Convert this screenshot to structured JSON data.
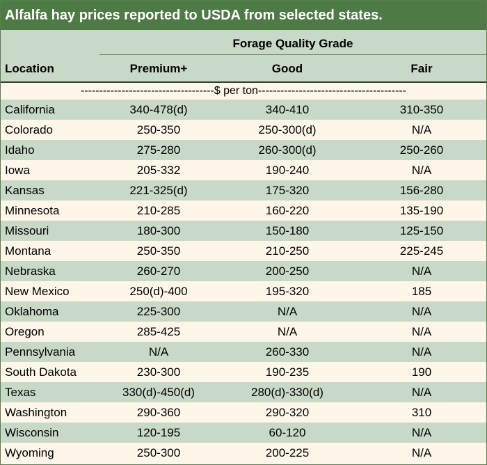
{
  "title": "Alfalfa hay prices reported to USDA from selected states.",
  "header": {
    "group_label": "Forage Quality Grade",
    "location_label": "Location",
    "columns": [
      "Premium+",
      "Good",
      "Fair"
    ]
  },
  "units_label": "$ per ton",
  "rows": [
    {
      "location": "California",
      "premium": "340-478(d)",
      "good": "340-410",
      "fair": "310-350"
    },
    {
      "location": "Colorado",
      "premium": "250-350",
      "good": "250-300(d)",
      "fair": "N/A"
    },
    {
      "location": "Idaho",
      "premium": "275-280",
      "good": "260-300(d)",
      "fair": "250-260"
    },
    {
      "location": "Iowa",
      "premium": "205-332",
      "good": "190-240",
      "fair": "N/A"
    },
    {
      "location": "Kansas",
      "premium": "221-325(d)",
      "good": "175-320",
      "fair": "156-280"
    },
    {
      "location": "Minnesota",
      "premium": "210-285",
      "good": "160-220",
      "fair": "135-190"
    },
    {
      "location": "Missouri",
      "premium": "180-300",
      "good": "150-180",
      "fair": "125-150"
    },
    {
      "location": "Montana",
      "premium": "250-350",
      "good": "210-250",
      "fair": "225-245"
    },
    {
      "location": "Nebraska",
      "premium": "260-270",
      "good": "200-250",
      "fair": "N/A"
    },
    {
      "location": "New Mexico",
      "premium": "250(d)-400",
      "good": "195-320",
      "fair": "185"
    },
    {
      "location": "Oklahoma",
      "premium": "225-300",
      "good": "N/A",
      "fair": "N/A"
    },
    {
      "location": "Oregon",
      "premium": "285-425",
      "good": "N/A",
      "fair": "N/A"
    },
    {
      "location": "Pennsylvania",
      "premium": "N/A",
      "good": "260-330",
      "fair": "N/A"
    },
    {
      "location": "South Dakota",
      "premium": "230-300",
      "good": "190-235",
      "fair": "190"
    },
    {
      "location": "Texas",
      "premium": "330(d)-450(d)",
      "good": "280(d)-330(d)",
      "fair": "N/A"
    },
    {
      "location": "Washington",
      "premium": "290-360",
      "good": "290-320",
      "fair": "310"
    },
    {
      "location": "Wisconsin",
      "premium": "120-195",
      "good": "60-120",
      "fair": "N/A"
    },
    {
      "location": "Wyoming",
      "premium": "250-300",
      "good": "200-225",
      "fair": "N/A"
    }
  ]
}
